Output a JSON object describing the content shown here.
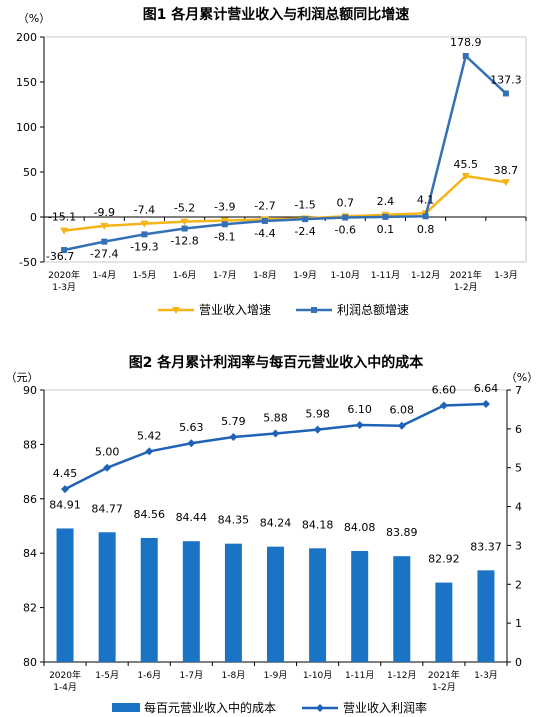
{
  "chart_data": [
    {
      "type": "line",
      "title": "图1  各月累计营业收入与利润总额同比增速",
      "ylabel": "（%）",
      "ylim": [
        -50,
        200
      ],
      "yticks": [
        -50,
        0,
        50,
        100,
        150,
        200
      ],
      "categories": [
        [
          "2020年",
          "1-3月"
        ],
        [
          "1-4月"
        ],
        [
          "1-5月"
        ],
        [
          "1-6月"
        ],
        [
          "1-7月"
        ],
        [
          "1-8月"
        ],
        [
          "1-9月"
        ],
        [
          "1-10月"
        ],
        [
          "1-11月"
        ],
        [
          "1-12月"
        ],
        [
          "2021年",
          "1-2月"
        ],
        [
          "1-3月"
        ]
      ],
      "series": [
        {
          "name": "营业收入增速",
          "color": "#f5b417",
          "values": [
            -15.1,
            -9.9,
            -7.4,
            -5.2,
            -3.9,
            -2.7,
            -1.5,
            0.7,
            2.4,
            4.1,
            45.5,
            38.7
          ],
          "labels": [
            "-15.1",
            "-9.9",
            "-7.4",
            "-5.2",
            "-3.9",
            "-2.7",
            "-1.5",
            "0.7",
            "2.4",
            "4.1",
            "45.5",
            "38.7"
          ]
        },
        {
          "name": "利润总额增速",
          "color": "#3470b5",
          "values": [
            -36.7,
            -27.4,
            -19.3,
            -12.8,
            -8.1,
            -4.4,
            -2.4,
            -0.6,
            0.1,
            0.8,
            178.9,
            137.3
          ],
          "labels": [
            "-36.7",
            "-27.4",
            "-19.3",
            "-12.8",
            "-8.1",
            "-4.4",
            "-2.4",
            "-0.6",
            "0.1",
            "0.8",
            "178.9",
            "137.3"
          ]
        }
      ],
      "grid": false,
      "legend": "bottom"
    },
    {
      "type": "bar",
      "title": "图2  各月累计利润率与每百元营业收入中的成本",
      "ylabel_left": "（元）",
      "ylabel_right": "（%）",
      "ylim_left": [
        80,
        90
      ],
      "yticks_left": [
        80,
        82,
        84,
        86,
        88,
        90
      ],
      "ylim_right": [
        0,
        7
      ],
      "yticks_right": [
        0,
        1,
        2,
        3,
        4,
        5,
        6,
        7
      ],
      "categories": [
        [
          "2020年",
          "1-4月"
        ],
        [
          "1-5月"
        ],
        [
          "1-6月"
        ],
        [
          "1-7月"
        ],
        [
          "1-8月"
        ],
        [
          "1-9月"
        ],
        [
          "1-10月"
        ],
        [
          "1-11月"
        ],
        [
          "1-12月"
        ],
        [
          "2021年",
          "1-2月"
        ],
        [
          "1-3月"
        ]
      ],
      "series": [
        {
          "name": "每百元营业收入中的成本",
          "type": "bar",
          "axis": "left",
          "color": "#1a73c4",
          "values": [
            84.91,
            84.77,
            84.56,
            84.44,
            84.35,
            84.24,
            84.18,
            84.08,
            83.89,
            82.92,
            83.37
          ],
          "labels": [
            "84.91",
            "84.77",
            "84.56",
            "84.44",
            "84.35",
            "84.24",
            "84.18",
            "84.08",
            "83.89",
            "82.92",
            "83.37"
          ]
        },
        {
          "name": "营业收入利润率",
          "type": "line",
          "axis": "right",
          "color": "#1f62b8",
          "values": [
            4.45,
            5.0,
            5.42,
            5.63,
            5.79,
            5.88,
            5.98,
            6.1,
            6.08,
            6.6,
            6.64
          ],
          "labels": [
            "4.45",
            "5.00",
            "5.42",
            "5.63",
            "5.79",
            "5.88",
            "5.98",
            "6.10",
            "6.08",
            "6.60",
            "6.64"
          ]
        }
      ],
      "grid": false,
      "legend": "bottom"
    }
  ]
}
